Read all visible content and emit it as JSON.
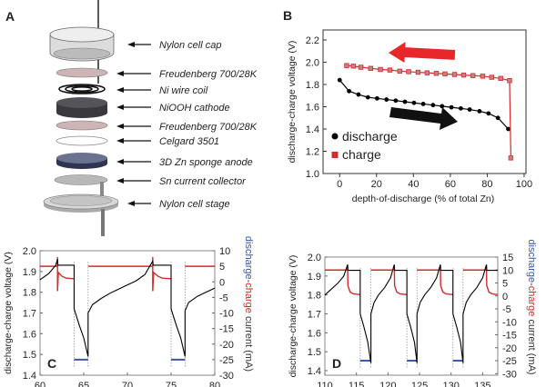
{
  "panel_a": {
    "label": "A",
    "components": [
      "Nylon cell cap",
      "Freudenberg 700/28K",
      "Ni wire coil",
      "NiOOH cathode",
      "Freudenberg 700/28K",
      "Celgard 3501",
      "3D Zn sponge anode",
      "Sn current collector",
      "Nylon cell stage"
    ]
  },
  "colors": {
    "discharge": "#000000",
    "charge": "#d42a2a",
    "discharge_current": "#3b55a8",
    "arrow_red": "#e8272a",
    "arrow_black": "#111111",
    "gridline": "#999999"
  },
  "chart_data": [
    {
      "panel": "B",
      "type": "line",
      "xlabel": "depth-of-discharge (% of total Zn)",
      "ylabel": "discharge-charge voltage (V)",
      "xlim": [
        -9,
        101
      ],
      "ylim": [
        1.0,
        2.29
      ],
      "xticks": [
        "0",
        "20",
        "40",
        "60",
        "80",
        "100"
      ],
      "yticks": [
        "1.0",
        "1.2",
        "1.4",
        "1.6",
        "1.8",
        "2.0",
        "2.2"
      ],
      "legend_position": "bottom-left",
      "series": [
        {
          "name": "discharge",
          "marker": "circle",
          "x": [
            0,
            5.1,
            10.2,
            15.3,
            20.3,
            25.4,
            30.4,
            35.4,
            40.3,
            45.3,
            50.6,
            55.5,
            60.6,
            65.7,
            70.5,
            75.8,
            80.7,
            85.8,
            91.4
          ],
          "y": [
            1.84,
            1.74,
            1.71,
            1.685,
            1.675,
            1.665,
            1.655,
            1.645,
            1.635,
            1.625,
            1.615,
            1.605,
            1.595,
            1.585,
            1.575,
            1.56,
            1.54,
            1.5,
            1.4
          ]
        },
        {
          "name": "charge",
          "marker": "square",
          "x": [
            3.8,
            7.4,
            11.5,
            16.8,
            22.1,
            27.2,
            32.6,
            37.4,
            42.5,
            47.4,
            52.4,
            57.1,
            62.3,
            67.2,
            72.2,
            77.5,
            82.4,
            87.3,
            92.1,
            92.8
          ],
          "y": [
            1.97,
            1.965,
            1.955,
            1.945,
            1.935,
            1.93,
            1.92,
            1.915,
            1.91,
            1.905,
            1.9,
            1.895,
            1.89,
            1.885,
            1.88,
            1.875,
            1.865,
            1.855,
            1.835,
            1.14
          ]
        }
      ]
    },
    {
      "panel": "C",
      "type": "line",
      "ylabel": "discharge-charge voltage (V)",
      "y2label": [
        "discharge",
        "-",
        "charge",
        " current (mA)"
      ],
      "xlim": [
        60,
        80
      ],
      "ylim": [
        1.4,
        2.0
      ],
      "y2lim": [
        -30,
        10
      ],
      "xticks": [
        "60",
        "65",
        "70",
        "75",
        "80"
      ],
      "yticks": [
        "1.4",
        "1.5",
        "1.6",
        "1.7",
        "1.8",
        "1.9",
        "2.0"
      ],
      "y2ticks": [
        "-30",
        "-25",
        "-20",
        "-15",
        "-10",
        "-5",
        "0",
        "5",
        "10"
      ],
      "voltage": [
        [
          60,
          1.86
        ],
        [
          61,
          1.89
        ],
        [
          61.8,
          1.93
        ],
        [
          62,
          1.96
        ],
        [
          62.05,
          1.93
        ],
        [
          63.9,
          1.93
        ],
        [
          63.9,
          1.72
        ],
        [
          64.5,
          1.64
        ],
        [
          65,
          1.58
        ],
        [
          65.5,
          1.49
        ],
        [
          65.5,
          1.7
        ],
        [
          66,
          1.74
        ],
        [
          67,
          1.77
        ],
        [
          68,
          1.795
        ],
        [
          69,
          1.815
        ],
        [
          70,
          1.835
        ],
        [
          71,
          1.855
        ],
        [
          72,
          1.885
        ],
        [
          72.9,
          1.95
        ],
        [
          72.95,
          1.93
        ],
        [
          75,
          1.93
        ],
        [
          75,
          1.72
        ],
        [
          75.6,
          1.64
        ],
        [
          76.1,
          1.58
        ],
        [
          76.6,
          1.49
        ],
        [
          76.6,
          1.71
        ],
        [
          77,
          1.75
        ],
        [
          78,
          1.78
        ],
        [
          79,
          1.8
        ],
        [
          80,
          1.82
        ]
      ],
      "charge_current": [
        [
          [
            60,
            5
          ],
          [
            62,
            5
          ],
          [
            62,
            8
          ],
          [
            62,
            -3
          ],
          [
            62.1,
            3
          ],
          [
            62.5,
            1.8
          ],
          [
            63,
            1.2
          ],
          [
            63.9,
            1
          ]
        ],
        [
          [
            65.5,
            5
          ],
          [
            72.9,
            5
          ],
          [
            72.9,
            8
          ],
          [
            72.9,
            -3
          ],
          [
            73,
            3
          ],
          [
            73.5,
            1.8
          ],
          [
            74,
            1.2
          ],
          [
            75,
            1
          ]
        ],
        [
          [
            76.6,
            5
          ],
          [
            80,
            5
          ]
        ]
      ],
      "discharge_current": [
        [
          [
            63.9,
            -25
          ],
          [
            65.5,
            -25
          ]
        ],
        [
          [
            75,
            -25
          ],
          [
            76.6,
            -25
          ]
        ]
      ],
      "transitions": [
        63.9,
        65.5,
        75,
        76.6
      ]
    },
    {
      "panel": "D",
      "type": "line",
      "ylabel": "discharge-charge voltage (V)",
      "y2label": [
        "discharge",
        "-",
        "charge",
        " current (mA)"
      ],
      "xlim": [
        110,
        137.4
      ],
      "ylim": [
        1.376,
        2.0
      ],
      "y2lim": [
        -30.6,
        15
      ],
      "xticks": [
        "110",
        "115",
        "120",
        "125",
        "130",
        "135"
      ],
      "yticks": [
        "1.4",
        "1.5",
        "1.6",
        "1.7",
        "1.8",
        "1.9",
        "2.0"
      ],
      "y2ticks": [
        "-30",
        "-25",
        "-20",
        "-15",
        "-10",
        "-5",
        "0",
        "5",
        "10",
        "15"
      ],
      "voltage": [
        [
          110,
          1.8
        ],
        [
          111,
          1.83
        ],
        [
          112,
          1.86
        ],
        [
          113,
          1.9
        ],
        [
          113.6,
          1.96
        ],
        [
          113.65,
          1.93
        ],
        [
          115.6,
          1.93
        ],
        [
          115.6,
          1.7
        ],
        [
          116.2,
          1.63
        ],
        [
          116.8,
          1.55
        ],
        [
          117.3,
          1.44
        ],
        [
          117.3,
          1.7
        ],
        [
          117.8,
          1.76
        ],
        [
          118.5,
          1.8
        ],
        [
          119.5,
          1.84
        ],
        [
          120.4,
          1.89
        ],
        [
          121,
          1.96
        ],
        [
          121.05,
          1.93
        ],
        [
          123,
          1.93
        ],
        [
          123,
          1.7
        ],
        [
          123.6,
          1.63
        ],
        [
          124.2,
          1.55
        ],
        [
          124.6,
          1.44
        ],
        [
          124.6,
          1.7
        ],
        [
          125.1,
          1.76
        ],
        [
          125.8,
          1.8
        ],
        [
          126.8,
          1.84
        ],
        [
          127.7,
          1.89
        ],
        [
          128.3,
          1.96
        ],
        [
          128.35,
          1.93
        ],
        [
          130.3,
          1.93
        ],
        [
          130.3,
          1.7
        ],
        [
          130.9,
          1.63
        ],
        [
          131.5,
          1.55
        ],
        [
          131.9,
          1.44
        ],
        [
          131.9,
          1.7
        ],
        [
          132.4,
          1.76
        ],
        [
          133.1,
          1.8
        ],
        [
          134.1,
          1.84
        ],
        [
          135,
          1.89
        ],
        [
          135.6,
          1.96
        ],
        [
          135.65,
          1.93
        ],
        [
          137.4,
          1.93
        ]
      ],
      "charge_current": [
        [
          [
            110,
            10
          ],
          [
            113.6,
            10
          ],
          [
            113.6,
            12
          ],
          [
            113.65,
            4
          ],
          [
            114,
            1.5
          ],
          [
            114.5,
            0.8
          ],
          [
            115.6,
            0.5
          ]
        ],
        [
          [
            117.3,
            10
          ],
          [
            121,
            10
          ],
          [
            121,
            12
          ],
          [
            121.05,
            4
          ],
          [
            121.4,
            1.5
          ],
          [
            121.9,
            0.8
          ],
          [
            123,
            0.5
          ]
        ],
        [
          [
            124.6,
            10
          ],
          [
            128.3,
            10
          ],
          [
            128.3,
            12
          ],
          [
            128.35,
            4
          ],
          [
            128.7,
            1.5
          ],
          [
            129.2,
            0.8
          ],
          [
            130.3,
            0.5
          ]
        ],
        [
          [
            131.9,
            10
          ],
          [
            135.6,
            10
          ],
          [
            135.6,
            12
          ],
          [
            135.65,
            4
          ],
          [
            136,
            1.5
          ],
          [
            136.5,
            0.8
          ],
          [
            137.4,
            0.5
          ]
        ]
      ],
      "discharge_current": [
        [
          [
            115.6,
            -25
          ],
          [
            117.3,
            -25
          ]
        ],
        [
          [
            123,
            -25
          ],
          [
            124.6,
            -25
          ]
        ],
        [
          [
            130.3,
            -25
          ],
          [
            131.9,
            -25
          ]
        ]
      ],
      "transitions": [
        115.6,
        117.3,
        123,
        124.6,
        130.3,
        131.9
      ]
    }
  ]
}
